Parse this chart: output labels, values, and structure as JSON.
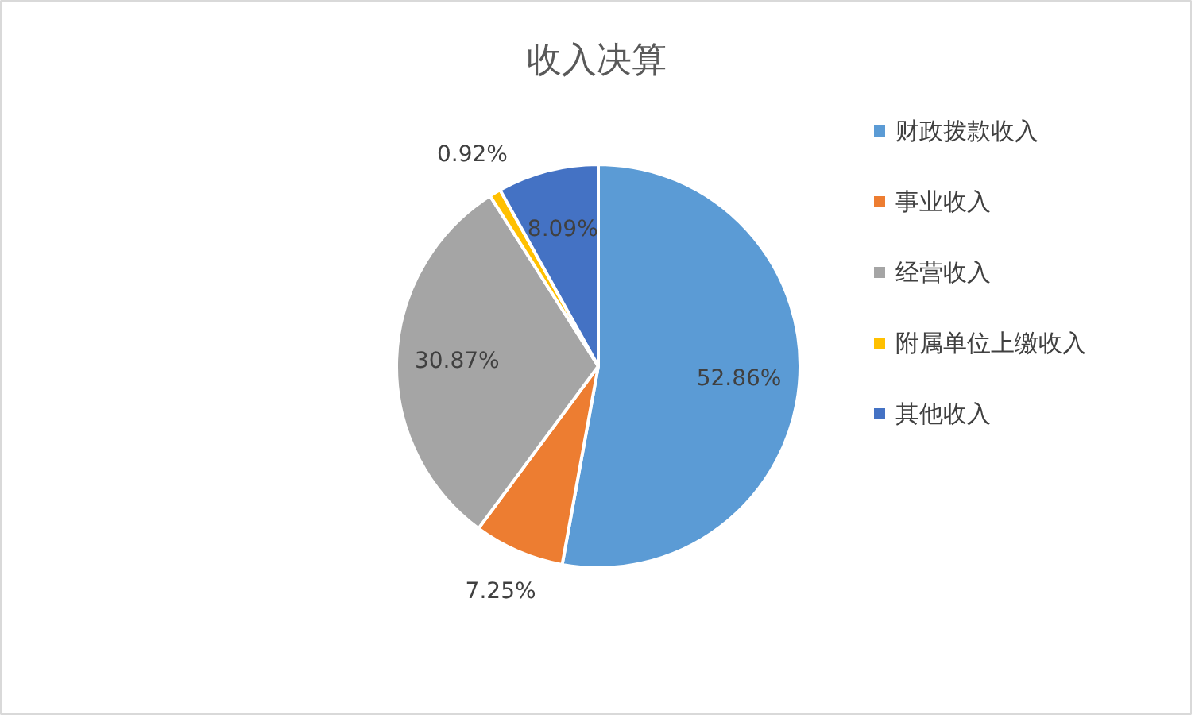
{
  "chart_data": {
    "type": "pie",
    "title": "收入决算",
    "categories": [
      "财政拨款收入",
      "事业收入",
      "经营收入",
      "附属单位上缴收入",
      "其他收入"
    ],
    "values": [
      52.86,
      7.25,
      30.87,
      0.92,
      8.09
    ],
    "colors": [
      "#5b9bd5",
      "#ed7d31",
      "#a5a5a5",
      "#ffc000",
      "#4472c4"
    ],
    "value_labels": [
      "52.86%",
      "7.25%",
      "30.87%",
      "0.92%",
      "8.09%"
    ],
    "legend": "right"
  }
}
